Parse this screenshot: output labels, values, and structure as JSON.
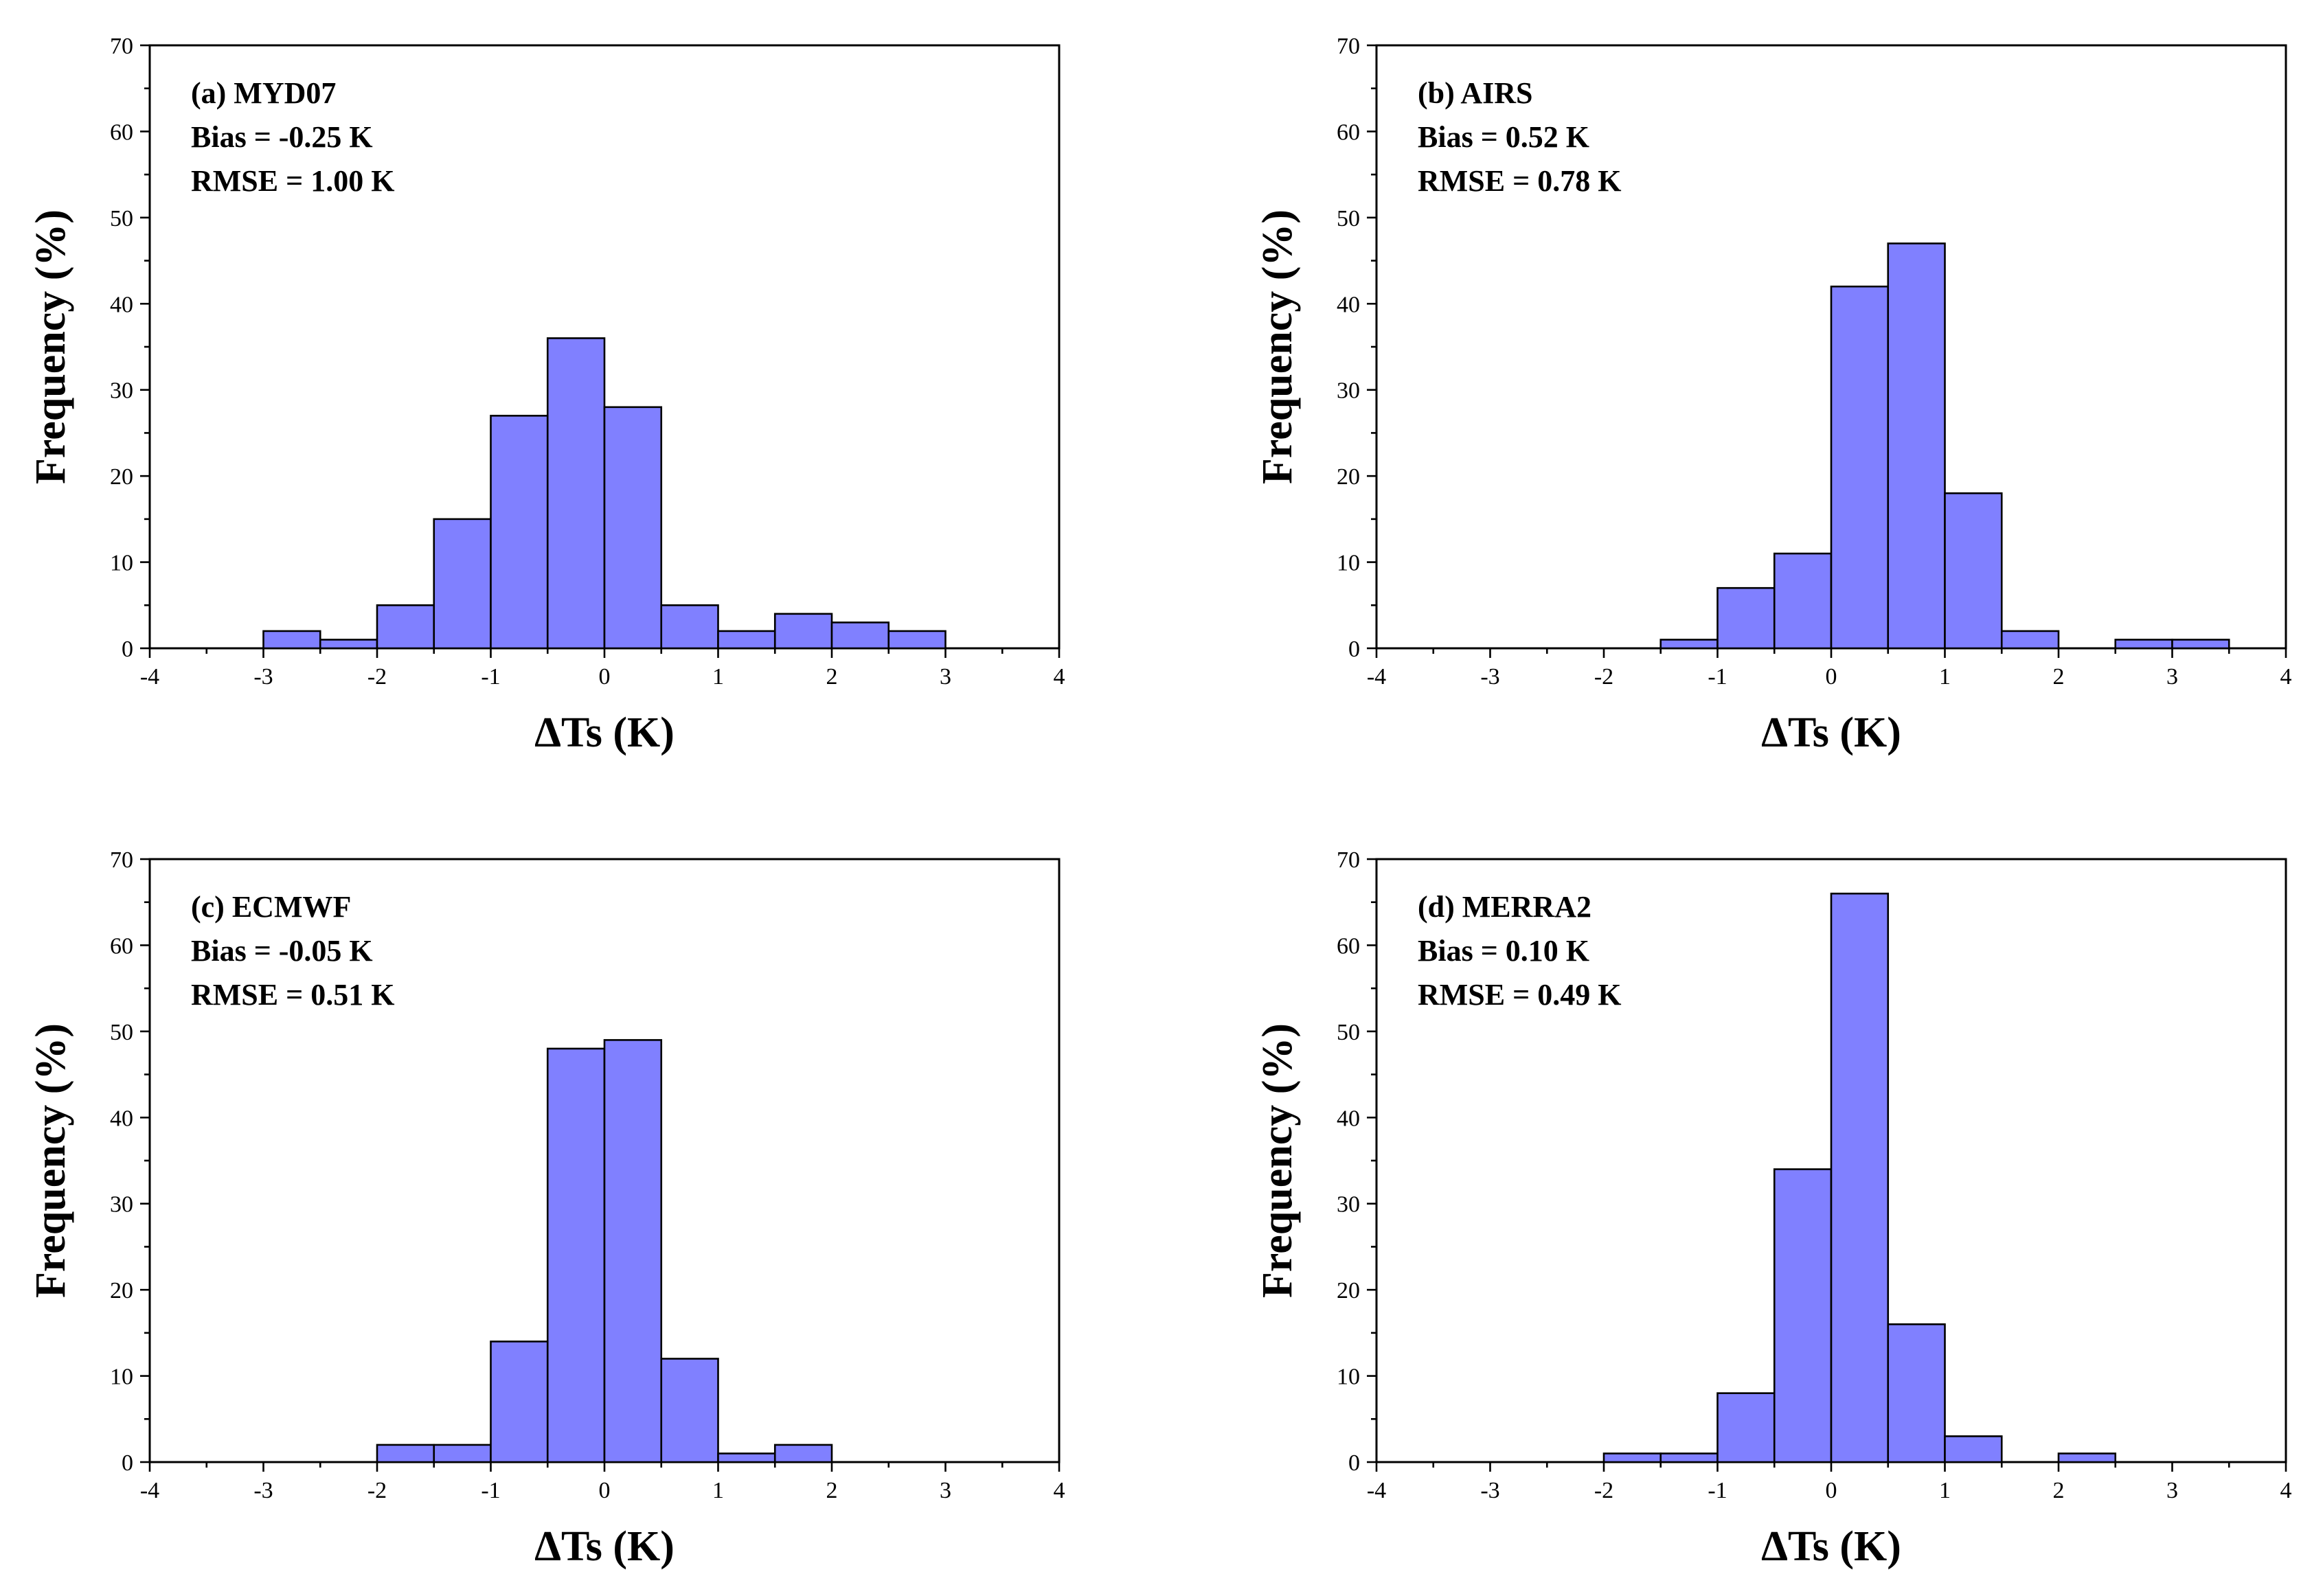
{
  "chart_data": [
    {
      "type": "bar",
      "panel_label": "(a) MYD07",
      "bias_text": "Bias = -0.25 K",
      "rmse_text": "RMSE = 1.00 K",
      "xlabel": "ΔTs (K)",
      "ylabel": "Frequency (%)",
      "xlim": [
        -4,
        4
      ],
      "ylim": [
        0,
        70
      ],
      "xticks": [
        "-4",
        "-3",
        "-2",
        "-1",
        "0",
        "1",
        "2",
        "3",
        "4"
      ],
      "yticks": [
        "0",
        "10",
        "20",
        "30",
        "40",
        "50",
        "60",
        "70"
      ],
      "bin_width": 0.5,
      "bins": [
        {
          "start": -3.0,
          "value": 2
        },
        {
          "start": -2.5,
          "value": 1
        },
        {
          "start": -2.0,
          "value": 5
        },
        {
          "start": -1.5,
          "value": 15
        },
        {
          "start": -1.0,
          "value": 27
        },
        {
          "start": -0.5,
          "value": 36
        },
        {
          "start": 0.0,
          "value": 28
        },
        {
          "start": 0.5,
          "value": 5
        },
        {
          "start": 1.0,
          "value": 2
        },
        {
          "start": 1.5,
          "value": 4
        },
        {
          "start": 2.0,
          "value": 3
        },
        {
          "start": 2.5,
          "value": 2
        }
      ]
    },
    {
      "type": "bar",
      "panel_label": "(b) AIRS",
      "bias_text": "Bias = 0.52 K",
      "rmse_text": "RMSE = 0.78 K",
      "xlabel": "ΔTs (K)",
      "ylabel": "Frequency (%)",
      "xlim": [
        -4,
        4
      ],
      "ylim": [
        0,
        70
      ],
      "xticks": [
        "-4",
        "-3",
        "-2",
        "-1",
        "0",
        "1",
        "2",
        "3",
        "4"
      ],
      "yticks": [
        "0",
        "10",
        "20",
        "30",
        "40",
        "50",
        "60",
        "70"
      ],
      "bin_width": 0.5,
      "bins": [
        {
          "start": -1.5,
          "value": 1
        },
        {
          "start": -1.0,
          "value": 7
        },
        {
          "start": -0.5,
          "value": 11
        },
        {
          "start": 0.0,
          "value": 42
        },
        {
          "start": 0.5,
          "value": 47
        },
        {
          "start": 1.0,
          "value": 18
        },
        {
          "start": 1.5,
          "value": 2
        },
        {
          "start": 2.5,
          "value": 1
        },
        {
          "start": 3.0,
          "value": 1
        }
      ]
    },
    {
      "type": "bar",
      "panel_label": "(c) ECMWF",
      "bias_text": "Bias = -0.05 K",
      "rmse_text": "RMSE = 0.51 K",
      "xlabel": "ΔTs (K)",
      "ylabel": "Frequency (%)",
      "xlim": [
        -4,
        4
      ],
      "ylim": [
        0,
        70
      ],
      "xticks": [
        "-4",
        "-3",
        "-2",
        "-1",
        "0",
        "1",
        "2",
        "3",
        "4"
      ],
      "yticks": [
        "0",
        "10",
        "20",
        "30",
        "40",
        "50",
        "60",
        "70"
      ],
      "bin_width": 0.5,
      "bins": [
        {
          "start": -2.0,
          "value": 2
        },
        {
          "start": -1.5,
          "value": 2
        },
        {
          "start": -1.0,
          "value": 14
        },
        {
          "start": -0.5,
          "value": 48
        },
        {
          "start": 0.0,
          "value": 49
        },
        {
          "start": 0.5,
          "value": 12
        },
        {
          "start": 1.0,
          "value": 1
        },
        {
          "start": 1.5,
          "value": 2
        }
      ]
    },
    {
      "type": "bar",
      "panel_label": "(d) MERRA2",
      "bias_text": "Bias = 0.10 K",
      "rmse_text": "RMSE = 0.49 K",
      "xlabel": "ΔTs (K)",
      "ylabel": "Frequency (%)",
      "xlim": [
        -4,
        4
      ],
      "ylim": [
        0,
        70
      ],
      "xticks": [
        "-4",
        "-3",
        "-2",
        "-1",
        "0",
        "1",
        "2",
        "3",
        "4"
      ],
      "yticks": [
        "0",
        "10",
        "20",
        "30",
        "40",
        "50",
        "60",
        "70"
      ],
      "bin_width": 0.5,
      "bins": [
        {
          "start": -2.0,
          "value": 1
        },
        {
          "start": -1.5,
          "value": 1
        },
        {
          "start": -1.0,
          "value": 8
        },
        {
          "start": -0.5,
          "value": 34
        },
        {
          "start": 0.0,
          "value": 66
        },
        {
          "start": 0.5,
          "value": 16
        },
        {
          "start": 1.0,
          "value": 3
        },
        {
          "start": 2.0,
          "value": 1
        }
      ]
    }
  ],
  "style": {
    "bar_color": "#8080ff",
    "edge_color": "#000000"
  }
}
